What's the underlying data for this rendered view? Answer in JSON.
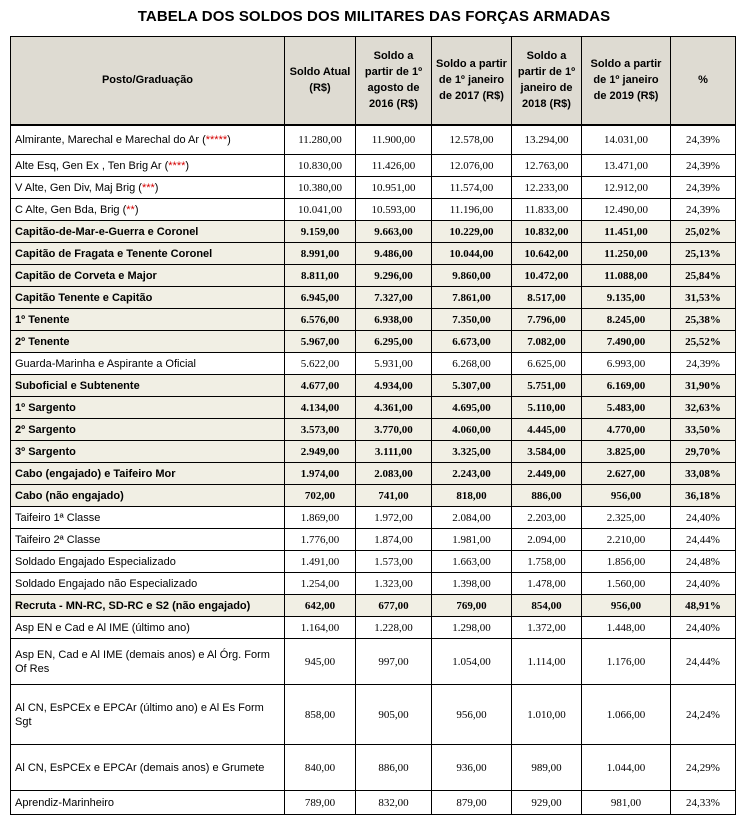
{
  "title": "TABELA DOS SOLDOS DOS MILITARES DAS FORÇAS ARMADAS",
  "headers": [
    "Posto/Graduação",
    "Soldo Atual (R$)",
    "Soldo a partir de 1º agosto de 2016 (R$)",
    "Soldo a partir de 1º janeiro de 2017 (R$)",
    "Soldo a partir de 1º janeiro de 2018 (R$)",
    "Soldo a partir de 1º janeiro de 2019 (R$)",
    "%"
  ],
  "rows": [
    {
      "posto": "Almirante, Marechal e Marechal do Ar (",
      "stars": "*****",
      "close": ")",
      "values": [
        "11.280,00",
        "11.900,00",
        "12.578,00",
        "13.294,00",
        "14.031,00",
        "24,39%"
      ]
    },
    {
      "posto": "Alte Esq, Gen Ex , Ten Brig Ar (",
      "stars": "****",
      "close": ")",
      "values": [
        "10.830,00",
        "11.426,00",
        "12.076,00",
        "12.763,00",
        "13.471,00",
        "24,39%"
      ]
    },
    {
      "posto": "V Alte, Gen Div, Maj Brig (",
      "stars": "***",
      "close": ")",
      "values": [
        "10.380,00",
        "10.951,00",
        "11.574,00",
        "12.233,00",
        "12.912,00",
        "24,39%"
      ]
    },
    {
      "posto": "C Alte, Gen Bda, Brig (",
      "stars": "**",
      "close": ")",
      "values": [
        "10.041,00",
        "10.593,00",
        "11.196,00",
        "11.833,00",
        "12.490,00",
        "24,39%"
      ]
    },
    {
      "posto": "Capitão-de-Mar-e-Guerra e Coronel",
      "values": [
        "9.159,00",
        "9.663,00",
        "10.229,00",
        "10.832,00",
        "11.451,00",
        "25,02%"
      ]
    },
    {
      "posto": "Capitão de Fragata e Tenente Coronel",
      "values": [
        "8.991,00",
        "9.486,00",
        "10.044,00",
        "10.642,00",
        "11.250,00",
        "25,13%"
      ]
    },
    {
      "posto": "Capitão de Corveta e Major",
      "values": [
        "8.811,00",
        "9.296,00",
        "9.860,00",
        "10.472,00",
        "11.088,00",
        "25,84%"
      ]
    },
    {
      "posto": "Capitão Tenente e Capitão",
      "values": [
        "6.945,00",
        "7.327,00",
        "7.861,00",
        "8.517,00",
        "9.135,00",
        "31,53%"
      ]
    },
    {
      "posto": "1º Tenente",
      "values": [
        "6.576,00",
        "6.938,00",
        "7.350,00",
        "7.796,00",
        "8.245,00",
        "25,38%"
      ]
    },
    {
      "posto": "2º Tenente",
      "values": [
        "5.967,00",
        "6.295,00",
        "6.673,00",
        "7.082,00",
        "7.490,00",
        "25,52%"
      ]
    },
    {
      "posto": "Guarda-Marinha e Aspirante a Oficial",
      "values": [
        "5.622,00",
        "5.931,00",
        "6.268,00",
        "6.625,00",
        "6.993,00",
        "24,39%"
      ]
    },
    {
      "posto": "Suboficial e Subtenente",
      "values": [
        "4.677,00",
        "4.934,00",
        "5.307,00",
        "5.751,00",
        "6.169,00",
        "31,90%"
      ]
    },
    {
      "posto": "1º Sargento",
      "values": [
        "4.134,00",
        "4.361,00",
        "4.695,00",
        "5.110,00",
        "5.483,00",
        "32,63%"
      ]
    },
    {
      "posto": "2º Sargento",
      "values": [
        "3.573,00",
        "3.770,00",
        "4.060,00",
        "4.445,00",
        "4.770,00",
        "33,50%"
      ]
    },
    {
      "posto": "3º Sargento",
      "values": [
        "2.949,00",
        "3.111,00",
        "3.325,00",
        "3.584,00",
        "3.825,00",
        "29,70%"
      ]
    },
    {
      "posto": "Cabo (engajado) e Taifeiro Mor",
      "values": [
        "1.974,00",
        "2.083,00",
        "2.243,00",
        "2.449,00",
        "2.627,00",
        "33,08%"
      ]
    },
    {
      "posto": "Cabo (não engajado)",
      "values": [
        "702,00",
        "741,00",
        "818,00",
        "886,00",
        "956,00",
        "36,18%"
      ]
    },
    {
      "posto": "Taifeiro 1ª Classe",
      "values": [
        "1.869,00",
        "1.972,00",
        "2.084,00",
        "2.203,00",
        "2.325,00",
        "24,40%"
      ]
    },
    {
      "posto": "Taifeiro 2ª Classe",
      "values": [
        "1.776,00",
        "1.874,00",
        "1.981,00",
        "2.094,00",
        "2.210,00",
        "24,44%"
      ]
    },
    {
      "posto": "Soldado Engajado Especializado",
      "values": [
        "1.491,00",
        "1.573,00",
        "1.663,00",
        "1.758,00",
        "1.856,00",
        "24,48%"
      ]
    },
    {
      "posto": "Soldado Engajado não Especializado",
      "values": [
        "1.254,00",
        "1.323,00",
        "1.398,00",
        "1.478,00",
        "1.560,00",
        "24,40%"
      ]
    },
    {
      "posto": "Recruta - MN-RC, SD-RC e S2 (não engajado)",
      "values": [
        "642,00",
        "677,00",
        "769,00",
        "854,00",
        "956,00",
        "48,91%"
      ]
    },
    {
      "posto": "Asp EN e Cad e Al IME (último ano)",
      "values": [
        "1.164,00",
        "1.228,00",
        "1.298,00",
        "1.372,00",
        "1.448,00",
        "24,40%"
      ]
    },
    {
      "posto": "Asp EN, Cad e Al IME (demais anos) e Al Órg. Form Of Res",
      "values": [
        "945,00",
        "997,00",
        "1.054,00",
        "1.114,00",
        "1.176,00",
        "24,44%"
      ]
    },
    {
      "posto": "Al CN, EsPCEx e EPCAr (último ano) e Al Es Form Sgt",
      "values": [
        "858,00",
        "905,00",
        "956,00",
        "1.010,00",
        "1.066,00",
        "24,24%"
      ]
    },
    {
      "posto": "Al CN, EsPCEx e EPCAr (demais anos) e Grumete",
      "values": [
        "840,00",
        "886,00",
        "936,00",
        "989,00",
        "1.044,00",
        "24,29%"
      ]
    },
    {
      "posto": "Aprendiz-Marinheiro",
      "values": [
        "789,00",
        "832,00",
        "879,00",
        "929,00",
        "981,00",
        "24,33%"
      ]
    }
  ]
}
